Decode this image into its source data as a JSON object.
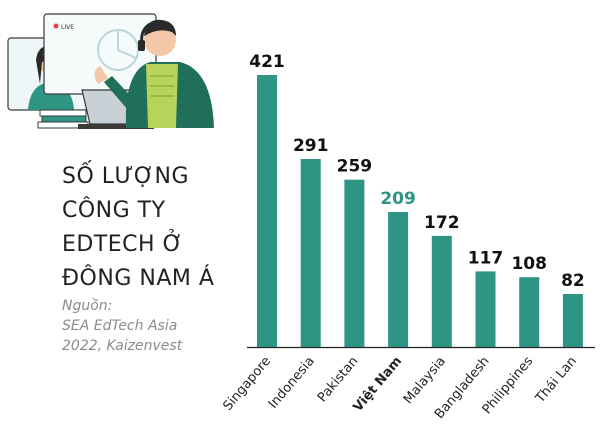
{
  "title_lines": [
    "SỐ LƯỢNG",
    "CÔNG TY",
    "EDTECH Ở",
    "ĐÔNG NAM Á"
  ],
  "source_lines": [
    "Nguồn:",
    "SEA EdTech Asia",
    "2022, Kaizenvest"
  ],
  "illustration": {
    "live_badge": "LIVE"
  },
  "colors": {
    "bar": "#2e9484",
    "highlight_value": "#2e9484",
    "value_text": "#111111",
    "axis_text": "#222222",
    "axis_line": "#222222"
  },
  "chart_data": {
    "type": "bar",
    "categories": [
      "Singapore",
      "Indonesia",
      "Pakistan",
      "Việt Nam",
      "Malaysia",
      "Bangladesh",
      "Philippines",
      "Thái Lan"
    ],
    "values": [
      421,
      291,
      259,
      209,
      172,
      117,
      108,
      82
    ],
    "highlight_category": "Việt Nam",
    "title": "",
    "xlabel": "",
    "ylabel": "",
    "ylim": [
      0,
      421
    ],
    "grid": false,
    "legend": "none"
  }
}
